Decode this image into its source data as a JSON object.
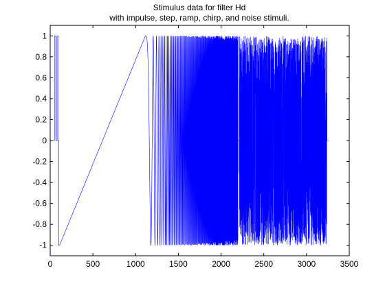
{
  "chart_data": {
    "type": "line",
    "title": [
      "Stimulus data for filter Hd",
      "with impulse, step, ramp, chirp, and noise stimuli."
    ],
    "xlabel": "",
    "ylabel": "",
    "xlim": [
      0,
      3500
    ],
    "ylim": [
      -1.1,
      1.1
    ],
    "xticks": [
      "0",
      "500",
      "1000",
      "1500",
      "2000",
      "2500",
      "3000",
      "3500"
    ],
    "yticks": [
      "-1",
      "-0.8",
      "-0.6",
      "-0.4",
      "-0.2",
      "0",
      "0.2",
      "0.4",
      "0.6",
      "0.8",
      "1"
    ],
    "grid": false,
    "series_color": "#0000ff",
    "segments": {
      "impulse_train": {
        "x_start": 0,
        "x_end": 100,
        "baseline": 0,
        "high": 1,
        "pulses": [
          [
            50,
            65
          ],
          [
            80,
            90
          ]
        ]
      },
      "step": {
        "x_start": 100,
        "x_end": 110,
        "value": -1
      },
      "ramp": {
        "x_start": 110,
        "x_end": 1115,
        "y_start": -1,
        "y_end": 1
      },
      "chirp": {
        "x_start": 1115,
        "x_end": 2200,
        "amplitude": 1
      },
      "gap": {
        "x_start": 2180,
        "x_end": 2215,
        "value": 0
      },
      "noise": {
        "x_start": 2215,
        "x_end": 3240,
        "min": -1,
        "max": 1
      },
      "tail": {
        "x_start": 3240,
        "x_end": 3260,
        "value": 0
      }
    }
  }
}
